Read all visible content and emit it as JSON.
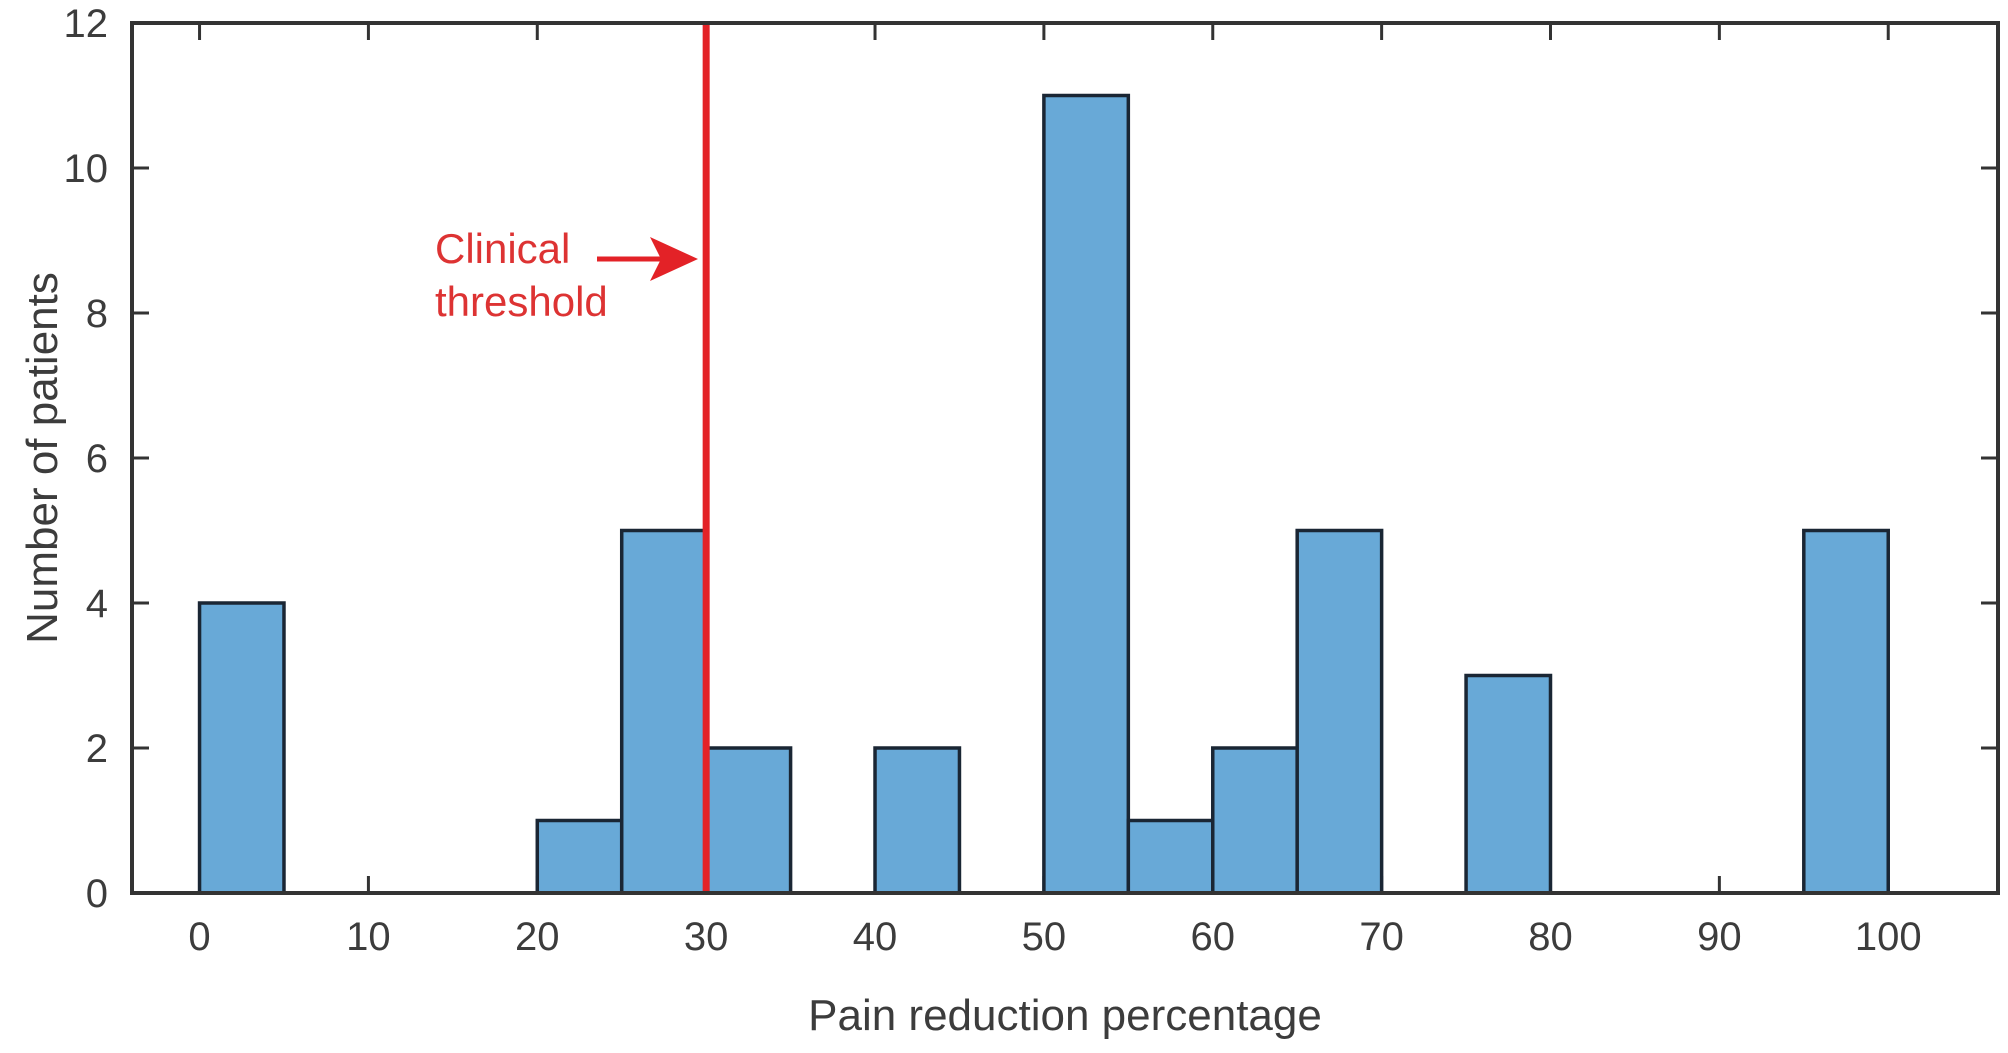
{
  "chart_data": {
    "type": "bar",
    "subtype": "histogram",
    "title": "",
    "xlabel": "Pain reduction percentage",
    "ylabel": "Number of patients",
    "xlim": [
      -4,
      106.5
    ],
    "ylim": [
      0,
      12
    ],
    "xticks": [
      0,
      10,
      20,
      30,
      40,
      50,
      60,
      70,
      80,
      90,
      100
    ],
    "yticks": [
      0,
      2,
      4,
      6,
      8,
      10,
      12
    ],
    "grid": false,
    "legend": false,
    "bin_width": 5,
    "bins": [
      {
        "start": 0,
        "end": 5,
        "count": 4
      },
      {
        "start": 20,
        "end": 25,
        "count": 1
      },
      {
        "start": 25,
        "end": 30,
        "count": 5
      },
      {
        "start": 30,
        "end": 35,
        "count": 2
      },
      {
        "start": 40,
        "end": 45,
        "count": 2
      },
      {
        "start": 50,
        "end": 55,
        "count": 11
      },
      {
        "start": 55,
        "end": 60,
        "count": 1
      },
      {
        "start": 60,
        "end": 65,
        "count": 2
      },
      {
        "start": 65,
        "end": 70,
        "count": 5
      },
      {
        "start": 75,
        "end": 80,
        "count": 3
      },
      {
        "start": 95,
        "end": 100,
        "count": 5
      }
    ],
    "threshold_line": {
      "x": 30,
      "orientation": "vertical"
    },
    "annotation": {
      "line1": "Clinical",
      "line2": "threshold",
      "arrow_points_to_x": 30
    }
  },
  "colors": {
    "background": "#ffffff",
    "bar_fill": "#68a9d7",
    "bar_edge": "#1a2634",
    "axis": "#333333",
    "tick_text": "#3c3c3c",
    "threshold_red": "#e32227",
    "annotation_red": "#dd3333"
  }
}
